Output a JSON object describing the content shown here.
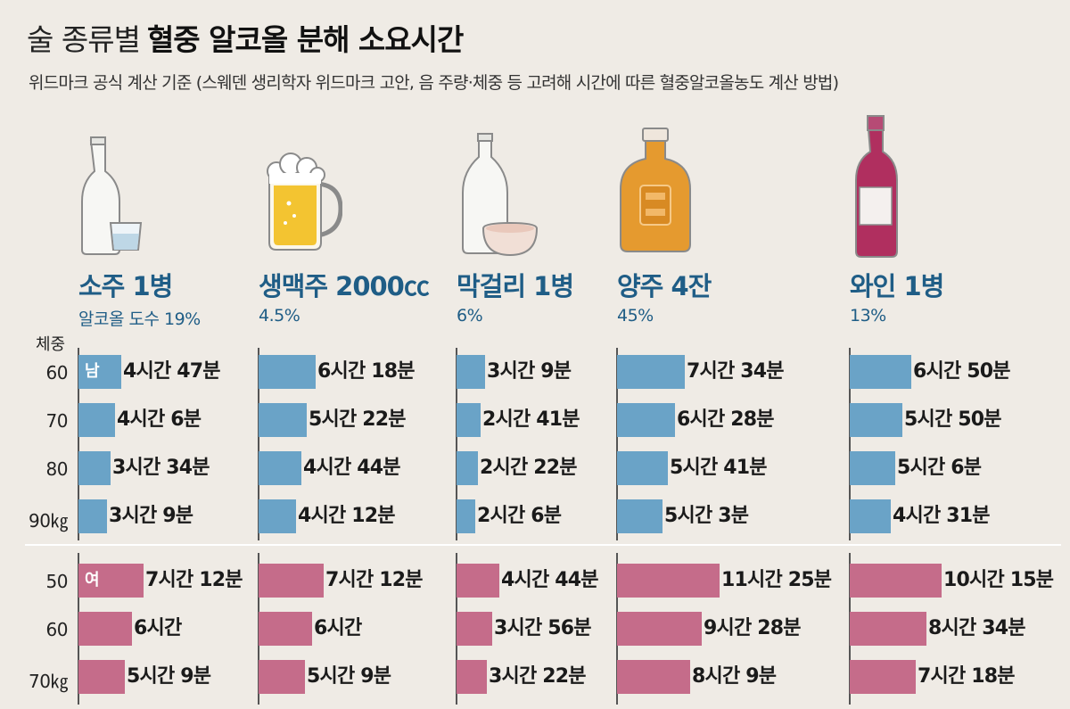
{
  "title_light": "술 종류별",
  "title_bold": "혈중 알코올 분해 소요시간",
  "subtitle": "위드마크 공식 계산 기준 (스웨덴 생리학자 위드마크 고안, 음 주량·체중 등 고려해 시간에 따른 혈중알코올농도 계산 방법)",
  "weight_title": "체중",
  "gender_labels": {
    "male": "남",
    "female": "여"
  },
  "colors": {
    "male": "#6aa3c7",
    "female": "#c56c8a",
    "heading": "#1f5d86"
  },
  "chart_data": {
    "type": "bar",
    "title": "술 종류별 혈중 알코올 분해 소요시간",
    "orientation": "horizontal",
    "unit": "minutes",
    "male_weights": [
      "60",
      "70",
      "80",
      "90㎏"
    ],
    "female_weights": [
      "50",
      "60",
      "70㎏"
    ],
    "drinks": [
      {
        "name": "소주 1병",
        "abv": "알코올 도수 19%",
        "icon": "soju-bottle-icon",
        "male": [
          {
            "label": "4시간 47분",
            "minutes": 287
          },
          {
            "label": "4시간 6분",
            "minutes": 246
          },
          {
            "label": "3시간 34분",
            "minutes": 214
          },
          {
            "label": "3시간 9분",
            "minutes": 189
          }
        ],
        "female": [
          {
            "label": "7시간 12분",
            "minutes": 432
          },
          {
            "label": "6시간",
            "minutes": 360
          },
          {
            "label": "5시간 9분",
            "minutes": 309
          }
        ]
      },
      {
        "name": "생맥주 2000㏄",
        "abv": "4.5%",
        "icon": "beer-mug-icon",
        "male": [
          {
            "label": "6시간 18분",
            "minutes": 378
          },
          {
            "label": "5시간 22분",
            "minutes": 322
          },
          {
            "label": "4시간 44분",
            "minutes": 284
          },
          {
            "label": "4시간 12분",
            "minutes": 252
          }
        ],
        "female": [
          {
            "label": "7시간 12분",
            "minutes": 432
          },
          {
            "label": "6시간",
            "minutes": 360
          },
          {
            "label": "5시간 9분",
            "minutes": 309
          }
        ]
      },
      {
        "name": "막걸리 1병",
        "abv": "6%",
        "icon": "makgeolli-bottle-icon",
        "male": [
          {
            "label": "3시간 9분",
            "minutes": 189
          },
          {
            "label": "2시간 41분",
            "minutes": 161
          },
          {
            "label": "2시간 22분",
            "minutes": 142
          },
          {
            "label": "2시간 6분",
            "minutes": 126
          }
        ],
        "female": [
          {
            "label": "4시간 44분",
            "minutes": 284
          },
          {
            "label": "3시간 56분",
            "minutes": 236
          },
          {
            "label": "3시간 22분",
            "minutes": 202
          }
        ]
      },
      {
        "name": "양주 4잔",
        "abv": "45%",
        "icon": "whiskey-bottle-icon",
        "male": [
          {
            "label": "7시간 34분",
            "minutes": 454
          },
          {
            "label": "6시간 28분",
            "minutes": 388
          },
          {
            "label": "5시간 41분",
            "minutes": 341
          },
          {
            "label": "5시간 3분",
            "minutes": 303
          }
        ],
        "female": [
          {
            "label": "11시간 25분",
            "minutes": 685
          },
          {
            "label": "9시간 28분",
            "minutes": 568
          },
          {
            "label": "8시간 9분",
            "minutes": 489
          }
        ]
      },
      {
        "name": "와인 1병",
        "abv": "13%",
        "icon": "wine-bottle-icon",
        "male": [
          {
            "label": "6시간 50분",
            "minutes": 410
          },
          {
            "label": "5시간 50분",
            "minutes": 350
          },
          {
            "label": "5시간 6분",
            "minutes": 306
          },
          {
            "label": "4시간 31분",
            "minutes": 271
          }
        ],
        "female": [
          {
            "label": "10시간 15분",
            "minutes": 615
          },
          {
            "label": "8시간 34분",
            "minutes": 514
          },
          {
            "label": "7시간 18분",
            "minutes": 438
          }
        ]
      }
    ]
  }
}
